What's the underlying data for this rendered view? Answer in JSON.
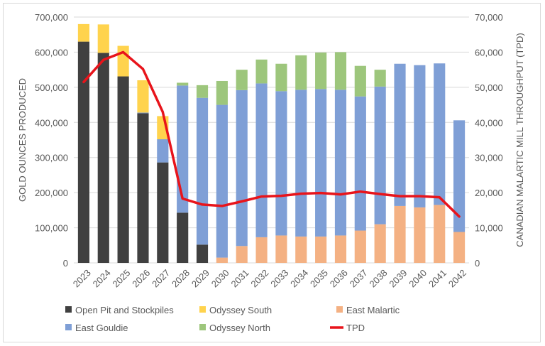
{
  "chart_data": {
    "type": "bar",
    "stacked": true,
    "categories": [
      "2023",
      "2024",
      "2025",
      "2026",
      "2027",
      "2028",
      "2029",
      "2030",
      "2031",
      "2032",
      "2033",
      "2034",
      "2035",
      "2036",
      "2037",
      "2038",
      "2039",
      "2040",
      "2041",
      "2042"
    ],
    "ylabel": "GOLD OUNCES PRODUCED",
    "y2label": "CANADIAN MALARTIC MILL THROUGHPUT (TPD)",
    "ylim": [
      0,
      700000
    ],
    "y2lim": [
      0,
      70000
    ],
    "yticks": [
      "0",
      "100,000",
      "200,000",
      "300,000",
      "400,000",
      "500,000",
      "600,000",
      "700,000"
    ],
    "y2ticks": [
      "0",
      "10,000",
      "20,000",
      "30,000",
      "40,000",
      "50,000",
      "60,000",
      "70,000"
    ],
    "grid": true,
    "legend_position": "bottom",
    "series": [
      {
        "name": "Open Pit and Stockpiles",
        "color": "#404040",
        "values": [
          630000,
          598000,
          531000,
          426000,
          286000,
          143000,
          52000,
          0,
          0,
          0,
          0,
          0,
          0,
          0,
          0,
          0,
          0,
          0,
          0,
          0
        ]
      },
      {
        "name": "East Malartic",
        "color": "#f4b183",
        "values": [
          0,
          0,
          0,
          0,
          0,
          0,
          0,
          15000,
          48000,
          73000,
          78000,
          75000,
          75000,
          78000,
          92000,
          110000,
          162000,
          158000,
          165000,
          88000
        ]
      },
      {
        "name": "East Gouldie",
        "color": "#7f9fd6",
        "values": [
          0,
          0,
          0,
          2000,
          66000,
          362000,
          418000,
          435000,
          444000,
          438000,
          411000,
          418000,
          420000,
          415000,
          382000,
          392000,
          405000,
          405000,
          403000,
          318000
        ]
      },
      {
        "name": "Odyssey South",
        "color": "#ffd34d",
        "values": [
          50000,
          81000,
          87000,
          92000,
          66000,
          0,
          0,
          0,
          0,
          0,
          0,
          0,
          0,
          0,
          0,
          0,
          0,
          0,
          0,
          0
        ]
      },
      {
        "name": "Odyssey North",
        "color": "#9dc67c",
        "values": [
          0,
          0,
          0,
          0,
          0,
          8000,
          36000,
          68000,
          58000,
          68000,
          78000,
          98000,
          104000,
          107000,
          87000,
          48000,
          0,
          0,
          0,
          0
        ]
      }
    ],
    "line_series": {
      "name": "TPD",
      "color": "#e8141b",
      "axis": "right",
      "values": [
        51500,
        57800,
        60000,
        55200,
        43000,
        18300,
        16600,
        16200,
        17500,
        18900,
        19100,
        19700,
        19900,
        19500,
        20300,
        19600,
        19000,
        19000,
        18700,
        13200
      ]
    },
    "legend": [
      {
        "name": "Open Pit and Stockpiles",
        "marker": "bar"
      },
      {
        "name": "Odyssey South",
        "marker": "bar"
      },
      {
        "name": "East Malartic",
        "marker": "bar"
      },
      {
        "name": "East Gouldie",
        "marker": "bar"
      },
      {
        "name": "Odyssey North",
        "marker": "bar"
      },
      {
        "name": "TPD",
        "marker": "line"
      }
    ]
  }
}
